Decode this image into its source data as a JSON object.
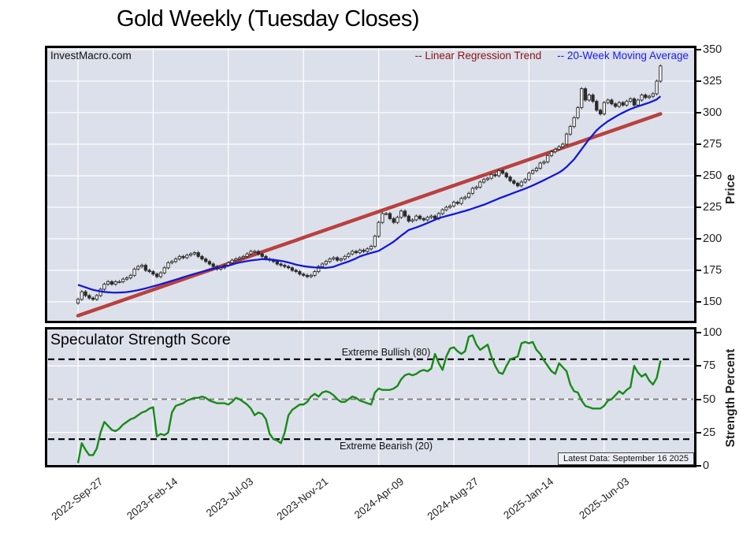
{
  "title": "Gold Weekly (Tuesday Closes)",
  "watermark": "InvestMacro.com",
  "legend": {
    "regression_label": "-- Linear Regression Trend",
    "ma_label": "-- 20-Week Moving Average"
  },
  "price_axis": {
    "label": "Price",
    "ticks": [
      350,
      325,
      300,
      275,
      250,
      225,
      200,
      175,
      150
    ]
  },
  "strength_axis": {
    "label": "Strength Percent",
    "ticks": [
      100,
      75,
      50,
      25,
      0
    ]
  },
  "x_axis": {
    "tick_labels": [
      "2022-Sep-27",
      "2023-Feb-14",
      "2023-Jul-03",
      "2023-Nov-21",
      "2024-Apr-09",
      "2024-Aug-27",
      "2025-Jan-14",
      "2025-Jun-03"
    ],
    "tick_weeks": [
      0,
      20,
      40,
      60,
      80,
      100,
      120,
      140
    ]
  },
  "strength_panel": {
    "title": "Speculator Strength Score",
    "bullish_label": "Extreme Bullish (80)",
    "bearish_label": "Extreme Bearish (20)",
    "latest_data": "Latest Data: September 16 2025"
  },
  "colors": {
    "panel_bg": "#dce0ea",
    "grid": "#ffffff",
    "candle": "#2b2b2b",
    "candle_up_fill": "#f5f5f5",
    "ma_line": "#1518d6",
    "regression_line": "#b8413e",
    "strength_line": "#188a18",
    "threshold_dash": "#000000",
    "midline_dash": "#7a7a7a"
  },
  "chart_data": [
    {
      "type": "line",
      "name": "Gold Weekly Price",
      "x_unit": "week",
      "weeks": 156,
      "start_label": "2022-Sep-27",
      "end_label": "2025-Sep-16",
      "ylabel": "Price",
      "ylim": [
        133,
        353
      ],
      "yticks": [
        150,
        175,
        200,
        225,
        250,
        275,
        300,
        325,
        350
      ],
      "series": [
        {
          "name": "Gold Weekly Close (candles)",
          "type": "candlestick",
          "values": [
            152,
            158,
            155,
            153,
            152,
            155,
            160,
            164,
            166,
            164,
            166,
            166,
            168,
            169,
            171,
            176,
            178,
            179,
            175,
            174,
            172,
            170,
            173,
            177,
            181,
            182,
            184,
            186,
            185,
            187,
            188,
            189,
            186,
            184,
            182,
            180,
            178,
            176,
            177,
            179,
            181,
            183,
            184,
            185,
            186,
            188,
            190,
            190,
            188,
            186,
            184,
            183,
            182,
            180,
            179,
            178,
            177,
            175,
            174,
            172,
            171,
            170,
            171,
            174,
            178,
            180,
            182,
            184,
            185,
            183,
            184,
            186,
            188,
            190,
            189,
            191,
            190,
            192,
            194,
            202,
            213,
            220,
            220,
            216,
            213,
            217,
            222,
            218,
            214,
            215,
            218,
            216,
            215,
            217,
            218,
            216,
            220,
            223,
            225,
            226,
            229,
            228,
            232,
            233,
            236,
            240,
            241,
            245,
            247,
            248,
            251,
            250,
            254,
            252,
            249,
            246,
            244,
            242,
            245,
            247,
            252,
            254,
            256,
            260,
            261,
            266,
            269,
            271,
            273,
            275,
            283,
            289,
            296,
            304,
            319,
            310,
            314,
            309,
            302,
            299,
            308,
            310,
            307,
            305,
            308,
            306,
            309,
            311,
            306,
            310,
            314,
            312,
            313,
            315,
            325,
            337
          ]
        },
        {
          "name": "20-Week Moving Average",
          "type": "line",
          "values": [
            163.5,
            162.5,
            161.5,
            160.5,
            159.5,
            158.9,
            158.3,
            157.9,
            157.6,
            157.4,
            157.3,
            157.4,
            157.5,
            157.8,
            158.2,
            158.7,
            159.3,
            160.0,
            160.7,
            161.5,
            162.3,
            163.1,
            164.0,
            164.9,
            165.8,
            166.7,
            167.6,
            168.5,
            169.5,
            170.4,
            171.3,
            172.2,
            173.0,
            173.9,
            174.7,
            175.5,
            176.2,
            176.9,
            177.5,
            178.1,
            178.7,
            179.6,
            180.5,
            181.2,
            181.8,
            182.3,
            182.8,
            183.2,
            183.5,
            183.9,
            183.8,
            183.6,
            183.3,
            182.9,
            182.5,
            181.9,
            181.2,
            180.4,
            179.5,
            178.9,
            178.3,
            177.9,
            177.6,
            177.3,
            177.1,
            177.0,
            176.9,
            177.3,
            177.8,
            178.9,
            180.0,
            181.0,
            182.0,
            183.2,
            184.5,
            186.0,
            187.0,
            187.9,
            188.8,
            189.6,
            190.4,
            192.2,
            194.0,
            195.8,
            197.7,
            200.1,
            202.5,
            204.7,
            207.0,
            208.0,
            209.0,
            210.1,
            211.3,
            212.5,
            213.8,
            215.1,
            216.4,
            217.2,
            218.0,
            218.8,
            219.6,
            220.4,
            221.3,
            222.1,
            223.0,
            224.0,
            225.0,
            226.0,
            227.0,
            228.2,
            229.5,
            230.7,
            232.0,
            233.1,
            234.2,
            235.3,
            236.5,
            237.6,
            238.7,
            239.8,
            241.0,
            242.3,
            243.7,
            245.1,
            246.5,
            248.0,
            249.5,
            251.0,
            252.5,
            254.5,
            257.0,
            260.0,
            263.0,
            267.0,
            271.0,
            275.0,
            279.0,
            282.5,
            286.0,
            288.7,
            291.0,
            293.2,
            295.0,
            296.8,
            298.5,
            300.0,
            301.5,
            302.8,
            304.0,
            305.0,
            306.0,
            307.0,
            308.0,
            309.2,
            310.5,
            313.0
          ]
        },
        {
          "name": "Linear Regression Trend",
          "type": "trendline",
          "start_value": 139,
          "end_value": 299
        }
      ]
    },
    {
      "type": "line",
      "name": "Speculator Strength Score",
      "x_unit": "week",
      "weeks": 156,
      "ylabel": "Strength Percent",
      "ylim": [
        0,
        100
      ],
      "thresholds": {
        "extreme_bullish": 80,
        "midline": 50,
        "extreme_bearish": 20
      },
      "values": [
        2,
        17,
        12,
        8,
        8,
        13,
        25,
        33,
        30,
        27,
        26,
        28,
        31,
        33,
        35,
        36,
        38,
        40,
        41,
        43,
        44,
        22,
        24,
        23,
        25,
        40,
        45,
        46,
        47,
        49,
        50,
        51,
        51,
        52,
        51,
        49,
        48,
        47,
        47,
        47,
        46,
        48,
        51,
        50,
        48,
        46,
        43,
        38,
        40,
        39,
        35,
        24,
        20,
        19,
        17,
        25,
        38,
        42,
        44,
        46,
        46,
        48,
        52,
        54,
        52,
        55,
        56,
        55,
        53,
        50,
        48,
        48,
        50,
        52,
        51,
        49,
        48,
        47,
        46,
        55,
        58,
        57,
        57,
        57,
        58,
        60,
        65,
        68,
        69,
        68,
        69,
        71,
        72,
        71,
        73,
        84,
        77,
        72,
        82,
        88,
        89,
        86,
        84,
        86,
        97,
        98,
        91,
        87,
        89,
        91,
        82,
        75,
        70,
        69,
        75,
        80,
        81,
        82,
        92,
        93,
        92,
        93,
        87,
        84,
        79,
        75,
        71,
        69,
        77,
        74,
        71,
        61,
        56,
        55,
        49,
        45,
        44,
        43,
        43,
        43,
        45,
        49,
        50,
        53,
        56,
        54,
        57,
        59,
        75,
        70,
        67,
        69,
        64,
        61,
        66,
        79
      ]
    }
  ]
}
